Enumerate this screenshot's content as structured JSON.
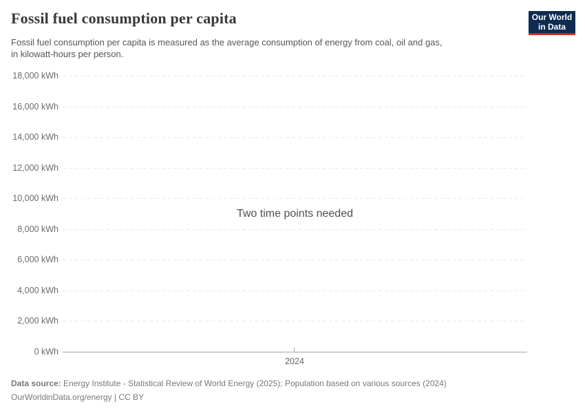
{
  "header": {
    "title": "Fossil fuel consumption per capita",
    "subtitle_line1": "Fossil fuel consumption per capita is measured as the average consumption of energy from coal, oil and gas,",
    "subtitle_line2": "in kilowatt-hours per person."
  },
  "logo": {
    "line1": "Our World",
    "line2": "in Data",
    "bg_color": "#0e2c51",
    "accent_color": "#cf2626"
  },
  "chart_data": {
    "type": "line",
    "title": "Fossil fuel consumption per capita",
    "series": [],
    "message": "Two time points needed",
    "xlabel": "",
    "ylabel": "",
    "unit": "kWh",
    "ylim": [
      0,
      18000
    ],
    "y_ticks": [
      0,
      2000,
      4000,
      6000,
      8000,
      10000,
      12000,
      14000,
      16000,
      18000
    ],
    "y_tick_labels": [
      "0 kWh",
      "2,000 kWh",
      "4,000 kWh",
      "6,000 kWh",
      "8,000 kWh",
      "10,000 kWh",
      "12,000 kWh",
      "14,000 kWh",
      "16,000 kWh",
      "18,000 kWh"
    ],
    "x_ticks": [
      2024
    ],
    "x_tick_labels": [
      "2024"
    ],
    "grid": "horizontal-dashed",
    "grid_color": "#e8e8e8",
    "axis_color": "#a6a6a6",
    "legend": "none"
  },
  "footer": {
    "datasource_label": "Data source:",
    "datasource_text": "Energy Institute - Statistical Review of World Energy (2025); Population based on various sources (2024)",
    "link_text": "OurWorldinData.org/energy",
    "separator": "|",
    "license": "CC BY"
  }
}
